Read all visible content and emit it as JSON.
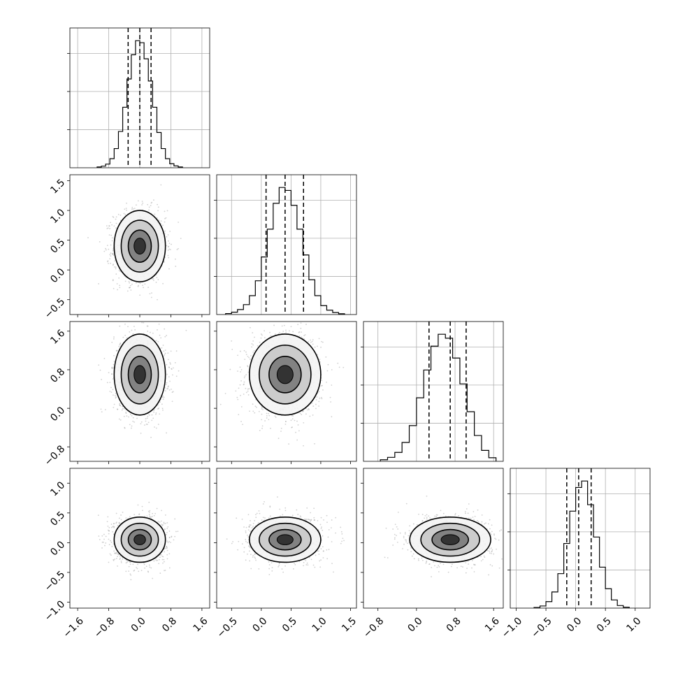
{
  "colors": {
    "background": "#ffffff",
    "axes": "#000000",
    "grid": "#b0b0b0",
    "scatter": "#9a9a9a",
    "density": "#000000"
  },
  "chart_data": {
    "type": "corner",
    "grid": true,
    "parameters": [
      {
        "mean": 0.0,
        "std": 0.33,
        "lim": [
          -1.8,
          1.8
        ],
        "ticks": [
          -1.6,
          -0.8,
          0.0,
          0.8,
          1.6
        ],
        "tick_labels": [
          "−1.6",
          "−0.8",
          "0.0",
          "0.8",
          "1.6"
        ],
        "quantiles": [
          -0.3,
          0.0,
          0.29
        ]
      },
      {
        "mean": 0.4,
        "std": 0.3,
        "lim": [
          -0.75,
          1.6
        ],
        "ticks": [
          -0.5,
          0.0,
          0.5,
          1.0,
          1.5
        ],
        "tick_labels": [
          "−0.5",
          "0.0",
          "0.5",
          "1.0",
          "1.5"
        ],
        "quantiles": [
          0.08,
          0.4,
          0.71
        ]
      },
      {
        "mean": 0.7,
        "std": 0.42,
        "lim": [
          -1.1,
          1.8
        ],
        "ticks": [
          -0.8,
          0.0,
          0.8,
          1.6
        ],
        "tick_labels": [
          "−0.8",
          "0.0",
          "0.8",
          "1.6"
        ],
        "quantiles": [
          0.26,
          0.7,
          1.03
        ]
      },
      {
        "mean": 0.05,
        "std": 0.19,
        "lim": [
          -1.1,
          1.25
        ],
        "ticks": [
          -1.0,
          -0.5,
          0.0,
          0.5,
          1.0
        ],
        "tick_labels": [
          "−1.0",
          "−0.5",
          "0.0",
          "0.5",
          "1.0"
        ],
        "quantiles": [
          -0.15,
          0.05,
          0.26
        ]
      }
    ],
    "histograms": [
      {
        "param": 0,
        "bin_edges": [
          -1.1,
          -0.99,
          -0.88,
          -0.77,
          -0.66,
          -0.55,
          -0.44,
          -0.33,
          -0.22,
          -0.11,
          0.0,
          0.11,
          0.22,
          0.33,
          0.44,
          0.55,
          0.66,
          0.77,
          0.88,
          0.99,
          1.1
        ],
        "counts": [
          4,
          8,
          18,
          45,
          95,
          180,
          300,
          440,
          560,
          630,
          620,
          540,
          430,
          300,
          175,
          95,
          45,
          20,
          9,
          4
        ]
      },
      {
        "param": 1,
        "bin_edges": [
          -0.6,
          -0.5,
          -0.4,
          -0.3,
          -0.2,
          -0.1,
          0.0,
          0.1,
          0.2,
          0.3,
          0.4,
          0.5,
          0.6,
          0.7,
          0.8,
          0.9,
          1.0,
          1.1,
          1.2,
          1.3,
          1.4
        ],
        "counts": [
          5,
          12,
          25,
          50,
          95,
          170,
          290,
          430,
          560,
          640,
          625,
          550,
          430,
          300,
          175,
          95,
          45,
          22,
          10,
          4
        ]
      },
      {
        "param": 2,
        "bin_edges": [
          -0.75,
          -0.6,
          -0.45,
          -0.3,
          -0.15,
          0.0,
          0.15,
          0.3,
          0.45,
          0.6,
          0.75,
          0.9,
          1.05,
          1.2,
          1.35,
          1.5,
          1.65
        ],
        "counts": [
          8,
          20,
          45,
          95,
          180,
          320,
          460,
          580,
          640,
          620,
          520,
          390,
          250,
          130,
          55,
          18
        ]
      },
      {
        "param": 3,
        "bin_edges": [
          -0.7,
          -0.6,
          -0.5,
          -0.4,
          -0.3,
          -0.2,
          -0.1,
          0.0,
          0.1,
          0.2,
          0.3,
          0.4,
          0.5,
          0.6,
          0.7,
          0.8,
          0.9
        ],
        "counts": [
          3,
          10,
          30,
          75,
          160,
          300,
          450,
          560,
          590,
          480,
          330,
          190,
          90,
          38,
          12,
          4
        ]
      }
    ],
    "joint_panels": [
      {
        "x_param": 0,
        "y_param": 1
      },
      {
        "x_param": 0,
        "y_param": 2
      },
      {
        "x_param": 1,
        "y_param": 2
      },
      {
        "x_param": 0,
        "y_param": 3
      },
      {
        "x_param": 1,
        "y_param": 3
      },
      {
        "x_param": 2,
        "y_param": 3
      }
    ]
  }
}
